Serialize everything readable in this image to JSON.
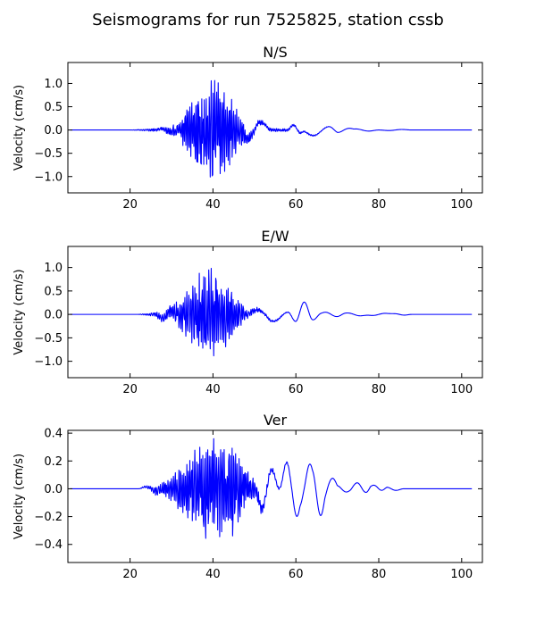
{
  "figure": {
    "suptitle": "Seismograms for run 7525825, station cssb"
  },
  "chart_data": [
    {
      "type": "line",
      "title": "N/S",
      "xlabel": "",
      "ylabel": "Velocity (cm/s)",
      "xlim": [
        5,
        105
      ],
      "ylim": [
        -1.35,
        1.45
      ],
      "xticks": [
        20,
        40,
        60,
        80,
        100
      ],
      "yticks": [
        -1.0,
        -0.5,
        0.0,
        0.5,
        1.0
      ],
      "ytick_labels": [
        "−1.0",
        "−0.5",
        "0.0",
        "0.5",
        "1.0"
      ],
      "color": "#0000ff",
      "envelope": [
        [
          20,
          0.0
        ],
        [
          28,
          0.05
        ],
        [
          32,
          0.2
        ],
        [
          35,
          0.8
        ],
        [
          38,
          0.95
        ],
        [
          40,
          1.3
        ],
        [
          42,
          1.0
        ],
        [
          44,
          1.1
        ],
        [
          46,
          0.5
        ],
        [
          48,
          0.15
        ],
        [
          52,
          0.05
        ],
        [
          70,
          0.0
        ]
      ],
      "noise_seed": 11,
      "waves": [
        [
          26,
          31,
          0.04,
          6
        ],
        [
          46,
          54,
          -0.22,
          6
        ],
        [
          58,
          62,
          0.12,
          5
        ],
        [
          61,
          70,
          -0.14,
          5
        ],
        [
          68,
          74,
          -0.06,
          5
        ],
        [
          72,
          80,
          0.03,
          6
        ],
        [
          80,
          88,
          -0.015,
          6
        ]
      ]
    },
    {
      "type": "line",
      "title": "E/W",
      "xlabel": "",
      "ylabel": "Velocity (cm/s)",
      "xlim": [
        5,
        105
      ],
      "ylim": [
        -1.35,
        1.45
      ],
      "xticks": [
        20,
        40,
        60,
        80,
        100
      ],
      "yticks": [
        -1.0,
        -0.5,
        0.0,
        0.5,
        1.0
      ],
      "ytick_labels": [
        "−1.0",
        "−0.5",
        "0.0",
        "0.5",
        "1.0"
      ],
      "color": "#0000ff",
      "envelope": [
        [
          22,
          0.0
        ],
        [
          26,
          0.05
        ],
        [
          30,
          0.15
        ],
        [
          33,
          0.45
        ],
        [
          36,
          0.9
        ],
        [
          39,
          1.05
        ],
        [
          41,
          0.95
        ],
        [
          44,
          0.65
        ],
        [
          46,
          0.45
        ],
        [
          48,
          0.1
        ],
        [
          52,
          0.04
        ],
        [
          60,
          0.0
        ]
      ],
      "noise_seed": 23,
      "waves": [
        [
          26,
          32,
          -0.1,
          6
        ],
        [
          48,
          60,
          0.15,
          8
        ],
        [
          58,
          64,
          -0.2,
          6
        ],
        [
          60,
          66,
          0.15,
          6
        ],
        [
          65,
          72,
          0.06,
          6
        ],
        [
          70,
          78,
          0.04,
          6
        ],
        [
          76,
          84,
          -0.03,
          6
        ],
        [
          82,
          88,
          0.02,
          6
        ]
      ]
    },
    {
      "type": "line",
      "title": "Ver",
      "xlabel": "",
      "ylabel": "Velocity (cm/s)",
      "xlim": [
        5,
        105
      ],
      "ylim": [
        -0.53,
        0.42
      ],
      "xticks": [
        20,
        40,
        60,
        80,
        100
      ],
      "yticks": [
        -0.4,
        -0.2,
        0.0,
        0.2,
        0.4
      ],
      "ytick_labels": [
        "−0.4",
        "−0.2",
        "0.0",
        "0.2",
        "0.4"
      ],
      "color": "#0000ff",
      "envelope": [
        [
          22,
          0.0
        ],
        [
          24,
          0.01
        ],
        [
          28,
          0.05
        ],
        [
          31,
          0.12
        ],
        [
          34,
          0.25
        ],
        [
          37,
          0.35
        ],
        [
          40,
          0.45
        ],
        [
          43,
          0.3
        ],
        [
          45,
          0.37
        ],
        [
          47,
          0.2
        ],
        [
          50,
          0.08
        ],
        [
          54,
          0.02
        ],
        [
          60,
          0.0
        ]
      ],
      "noise_seed": 37,
      "waves": [
        [
          22,
          28,
          0.02,
          6
        ],
        [
          50,
          56,
          -0.18,
          6
        ],
        [
          56,
          61,
          0.22,
          5
        ],
        [
          59,
          64,
          -0.15,
          5
        ],
        [
          62,
          67,
          0.16,
          5
        ],
        [
          64,
          70,
          -0.13,
          5
        ],
        [
          68,
          74,
          0.03,
          6
        ],
        [
          73,
          78,
          0.05,
          5
        ],
        [
          77,
          82,
          0.03,
          5
        ],
        [
          80,
          86,
          0.015,
          6
        ]
      ]
    }
  ]
}
